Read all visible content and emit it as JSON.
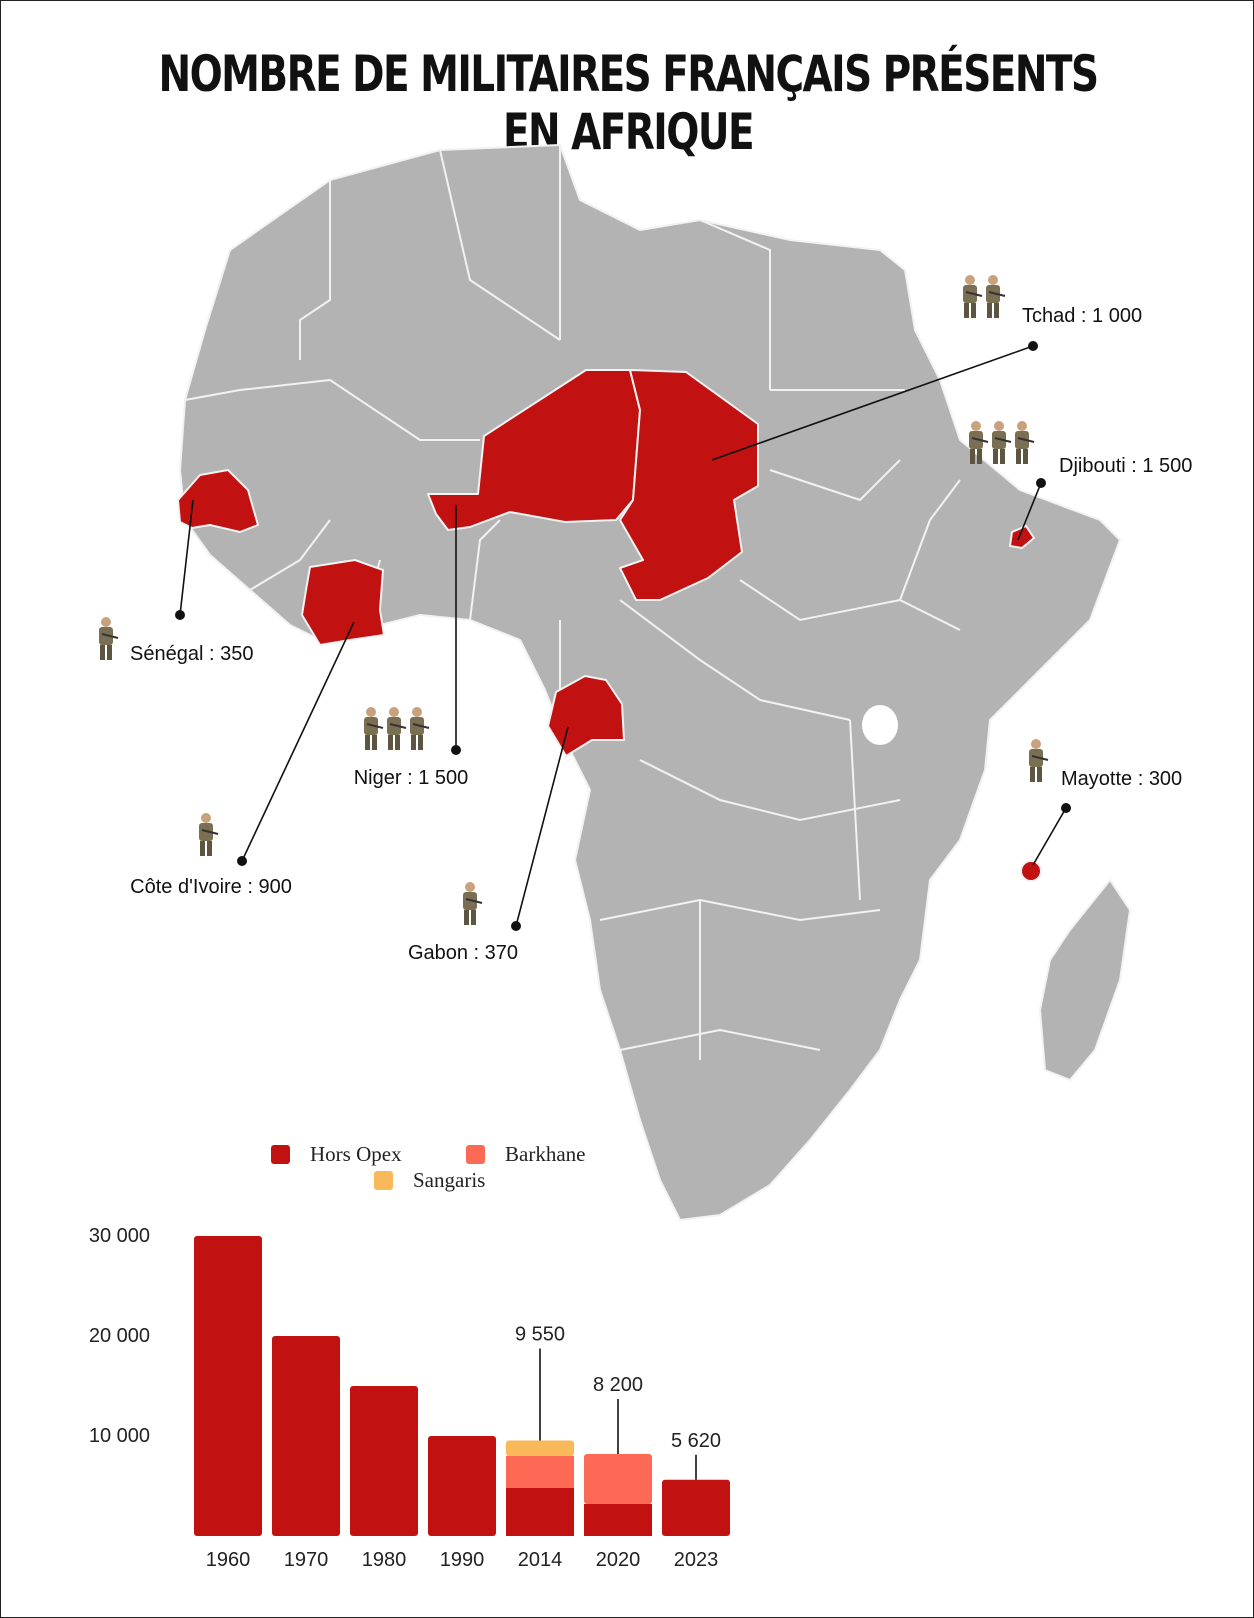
{
  "title": "NOMBRE DE MILITAIRES FRANÇAIS PRÉSENTS EN AFRIQUE",
  "colors": {
    "land": "#b3b3b3",
    "highlight": "#c21111",
    "hors_opex": "#c21111",
    "barkhane": "#fc6a55",
    "sangaris": "#f9b95b"
  },
  "map_labels": [
    {
      "id": "tchad",
      "text": "Tchad : 1 000",
      "soldiers": 2
    },
    {
      "id": "djibouti",
      "text": "Djibouti : 1 500",
      "soldiers": 3
    },
    {
      "id": "senegal",
      "text": "Sénégal : 350",
      "soldiers": 1
    },
    {
      "id": "niger",
      "text": "Niger : 1 500",
      "soldiers": 3
    },
    {
      "id": "cote-ivoire",
      "text": "Côte d'Ivoire : 900",
      "soldiers": 1
    },
    {
      "id": "gabon",
      "text": "Gabon : 370",
      "soldiers": 1
    },
    {
      "id": "mayotte",
      "text": "Mayotte : 300",
      "soldiers": 1
    }
  ],
  "chart_data": {
    "type": "bar",
    "stacked": true,
    "categories": [
      "1960",
      "1970",
      "1980",
      "1990",
      "2014",
      "2020",
      "2023"
    ],
    "series": [
      {
        "name": "Hors Opex",
        "color": "#c21111",
        "values": [
          30000,
          20000,
          15000,
          10000,
          4800,
          3200,
          5620
        ]
      },
      {
        "name": "Barkhane",
        "color": "#fc6a55",
        "values": [
          0,
          0,
          0,
          0,
          3200,
          5000,
          0
        ]
      },
      {
        "name": "Sangaris",
        "color": "#f9b95b",
        "values": [
          0,
          0,
          0,
          0,
          1550,
          0,
          0
        ]
      }
    ],
    "totals_labels": [
      {
        "category": "2014",
        "text": "9 550"
      },
      {
        "category": "2020",
        "text": "8 200"
      },
      {
        "category": "2023",
        "text": "5 620"
      }
    ],
    "y_ticks": [
      {
        "value": 10000,
        "label": "10 000"
      },
      {
        "value": 20000,
        "label": "20 000"
      },
      {
        "value": 30000,
        "label": "30 000"
      }
    ],
    "ylim": [
      0,
      30000
    ],
    "legend_position": "top",
    "grid": false
  }
}
